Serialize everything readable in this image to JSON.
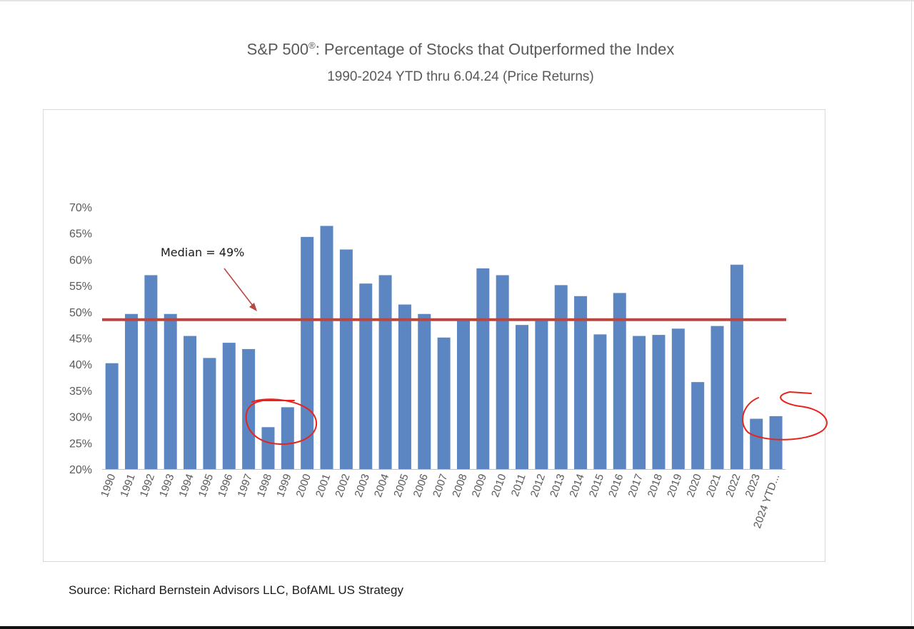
{
  "chart_data": {
    "type": "bar",
    "title": "S&P 500",
    "title_mark": "®",
    "title_rest": ":  Percentage of Stocks that Outperformed the Index",
    "subtitle": "1990-2024 YTD thru 6.04.24  (Price Returns)",
    "categories": [
      "1990",
      "1991",
      "1992",
      "1993",
      "1994",
      "1995",
      "1996",
      "1997",
      "1998",
      "1999",
      "2000",
      "2001",
      "2002",
      "2003",
      "2004",
      "2005",
      "2006",
      "2007",
      "2008",
      "2009",
      "2010",
      "2011",
      "2012",
      "2013",
      "2014",
      "2015",
      "2016",
      "2017",
      "2018",
      "2019",
      "2020",
      "2021",
      "2022",
      "2023",
      "2024 YTD..."
    ],
    "values": [
      40.2,
      49.6,
      57.0,
      49.6,
      45.4,
      41.2,
      44.1,
      42.9,
      28.0,
      31.8,
      64.3,
      66.4,
      61.9,
      55.4,
      57.0,
      51.4,
      49.6,
      45.1,
      48.4,
      58.3,
      57.0,
      47.5,
      48.4,
      55.1,
      53.0,
      45.7,
      53.6,
      45.4,
      45.6,
      46.8,
      36.6,
      47.3,
      59.0,
      29.6,
      30.1
    ],
    "yticks": [
      "70%",
      "65%",
      "60%",
      "55%",
      "50%",
      "45%",
      "40%",
      "35%",
      "30%",
      "25%",
      "20%"
    ],
    "ylim": [
      20,
      70
    ],
    "bar_color": "#5b86c2",
    "median": {
      "value": 48.5,
      "label": "Median = 49%",
      "color": "#b84842"
    },
    "annotation_color": "#e8231d",
    "source": "Source: Richard Bernstein Advisors LLC, BofAML US Strategy"
  }
}
